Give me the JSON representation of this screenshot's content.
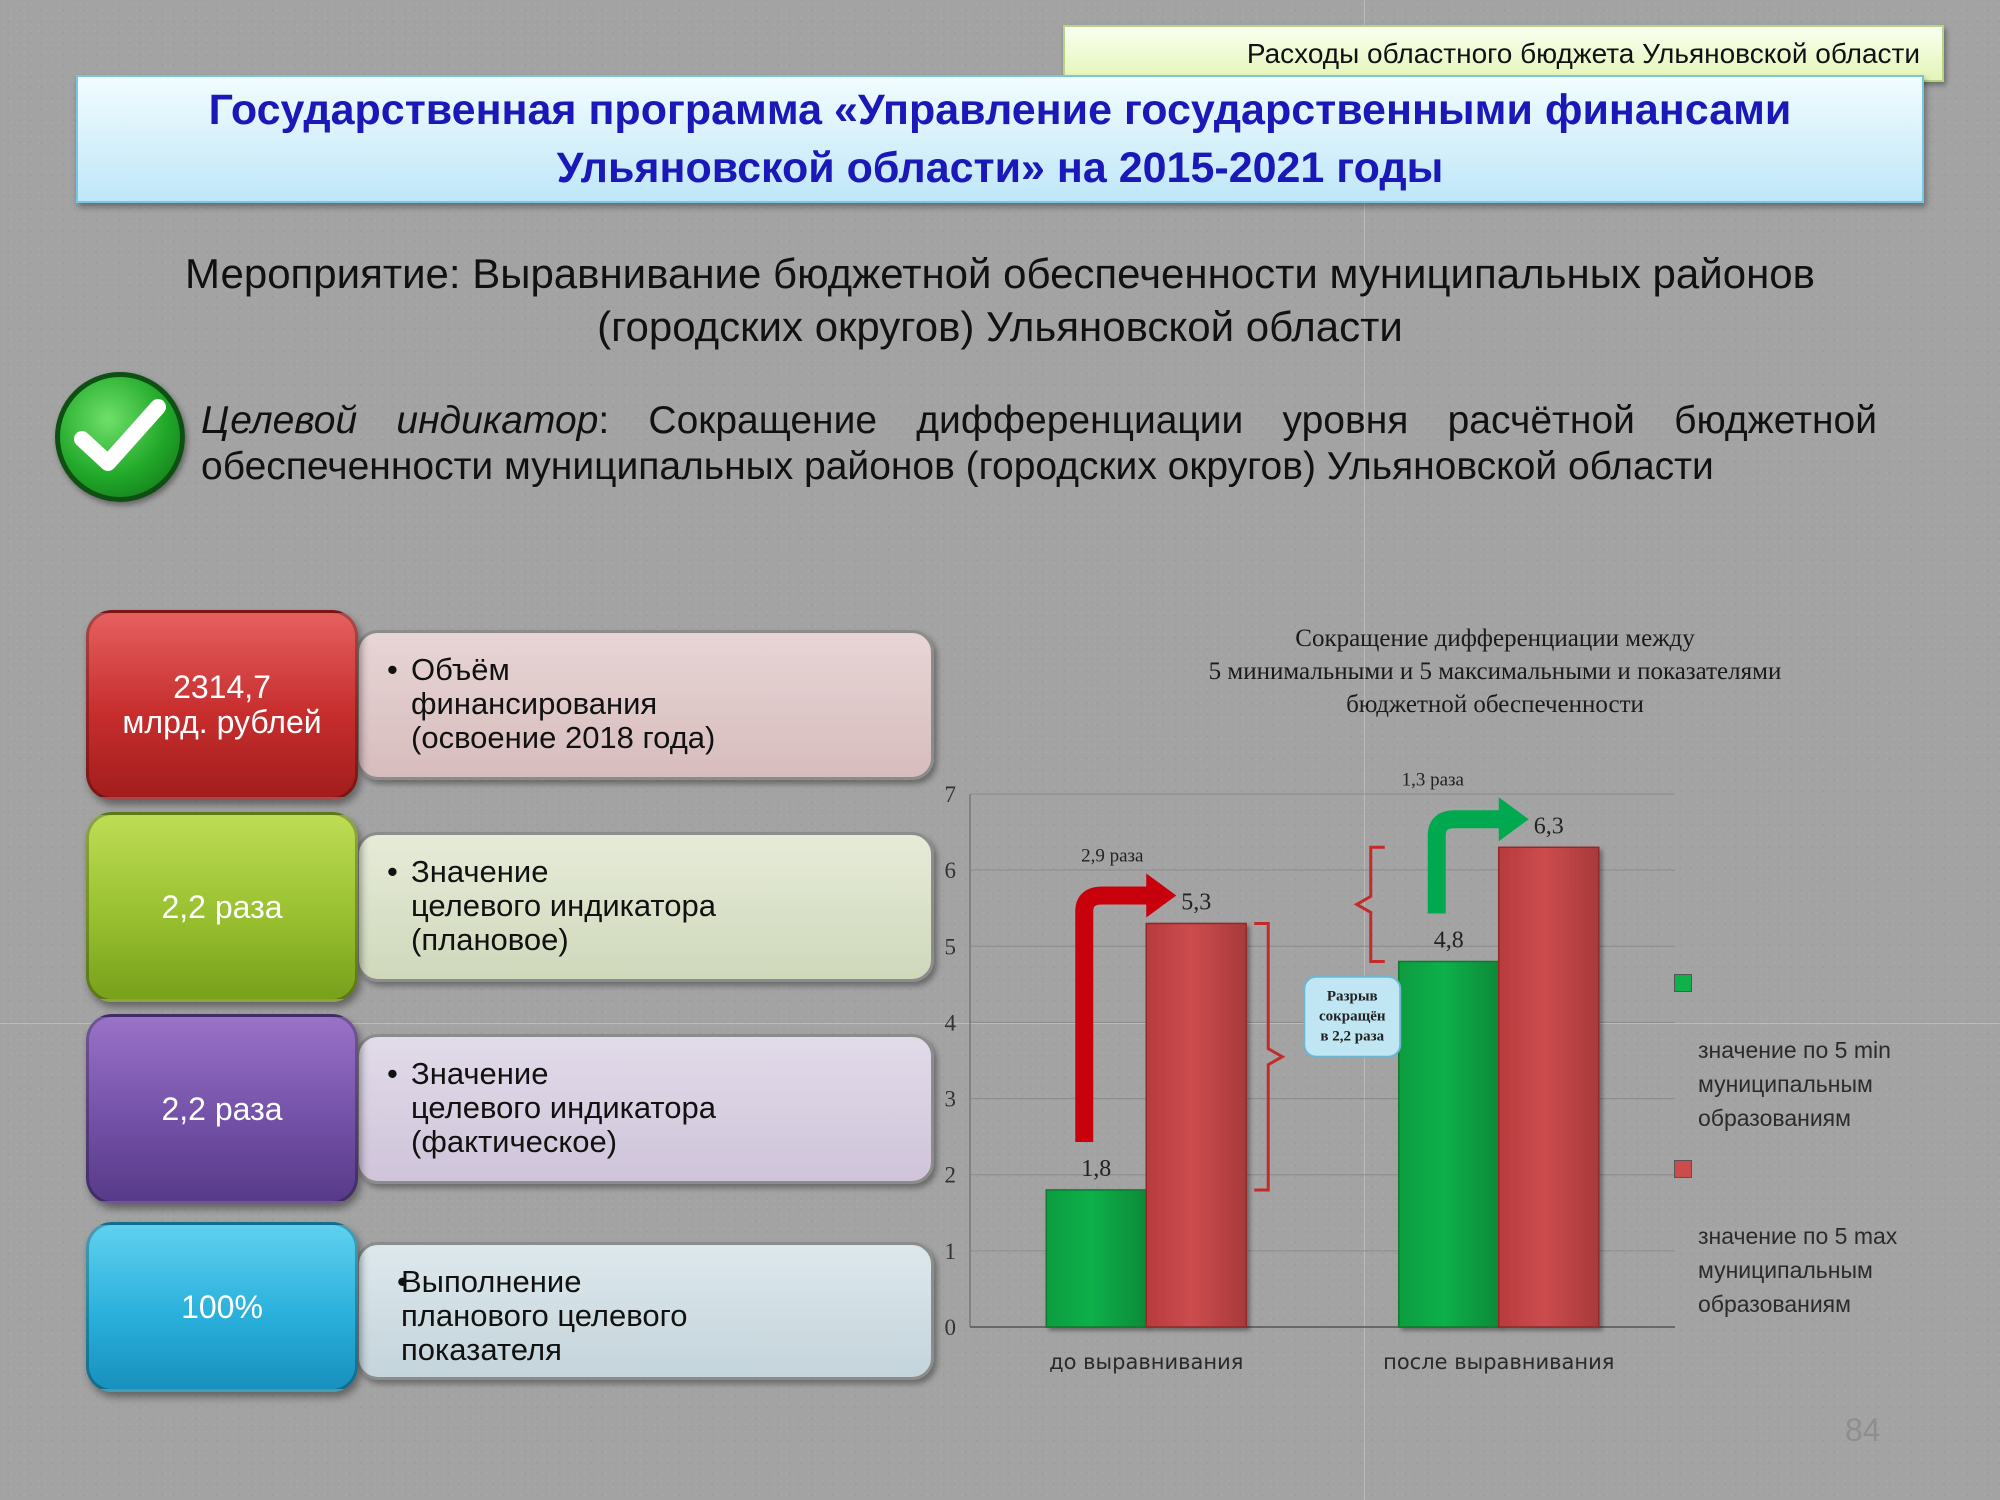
{
  "header": {
    "tag": "Расходы областного бюджета Ульяновской области"
  },
  "title": {
    "line1": "Государственная программа «Управление государственными финансами",
    "line2": "Ульяновской области» на 2015-2021 годы"
  },
  "measure": {
    "line1": "Мероприятие: Выравнивание бюджетной обеспеченности муниципальных районов",
    "line2": "(городских округов) Ульяновской области"
  },
  "indicator": {
    "label": "Целевой индикатор",
    "colon": ":",
    "text": " Сокращение дифференциации уровня расчётной бюджетной обеспеченности муниципальных районов (городских округов) Ульяновской области"
  },
  "cards": [
    {
      "value": "2314,7\nмлрд. рублей",
      "label": "Объём\nфинансирования\n(освоение 2018 года)"
    },
    {
      "value": "2,2 раза",
      "label": "Значение\nцелевого индикатора\n(плановое)"
    },
    {
      "value": "2,2 раза",
      "label": "Значение\nцелевого индикатора\n(фактическое)"
    },
    {
      "value": "100%",
      "label": "Выполнение\nпланового целевого\nпоказателя"
    }
  ],
  "bullet": "•",
  "colors": {
    "green_series": "#10b04a",
    "red_series": "#cc4c4e",
    "red_arrow": "#c8000c",
    "green_arrow": "#00a850",
    "title_text": "#1a18b8"
  },
  "chart_data": {
    "type": "bar",
    "title": "Сокращение  дифференциации  между\n5 минимальными и 5 максимальными и показателями\nбюджетной обеспеченности",
    "categories": [
      "до выравнивания",
      "после выравнивания"
    ],
    "series": [
      {
        "name": "значение по 5 min\nмуниципальным\nобразованиям",
        "values": [
          1.8,
          4.8
        ],
        "labels": [
          "1,8",
          "4,8"
        ]
      },
      {
        "name": "значение по 5 max\nмуниципальным\nобразованиям",
        "values": [
          5.3,
          6.3
        ],
        "labels": [
          "5,3",
          "6,3"
        ]
      }
    ],
    "ylim": [
      0,
      7
    ],
    "yticks": [
      "0",
      "1",
      "2",
      "3",
      "4",
      "5",
      "6",
      "7"
    ],
    "grid": true,
    "legend_position": "right",
    "annotations": {
      "ratio_before": "2,9 раза",
      "ratio_after": "1,3 раза",
      "gap_note": [
        "Разрыв",
        "сокращён",
        "в 2,2 раза"
      ]
    }
  },
  "page_number": "84"
}
